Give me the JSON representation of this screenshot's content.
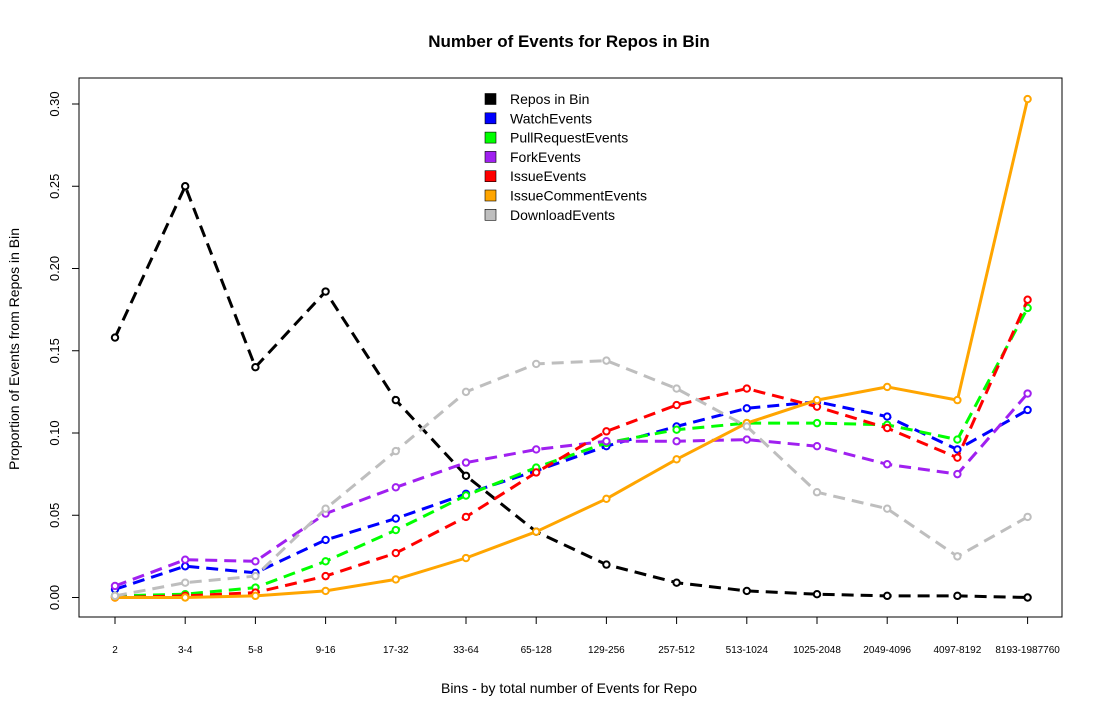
{
  "chart_data": {
    "type": "line",
    "title": "Number of Events for Repos in Bin",
    "xlabel": "Bins - by total number of Events for Repo",
    "ylabel": "Proportion of Events from Repos in Bin",
    "ylim": [
      0,
      0.3
    ],
    "y_ticks": [
      "0.00",
      "0.05",
      "0.10",
      "0.15",
      "0.20",
      "0.25",
      "0.30"
    ],
    "categories": [
      "2",
      "3-4",
      "5-8",
      "9-16",
      "17-32",
      "33-64",
      "65-128",
      "129-256",
      "257-512",
      "513-1024",
      "1025-2048",
      "2049-4096",
      "4097-8192",
      "8193-1987760"
    ],
    "legend_position": "top-center",
    "grid": false,
    "series": [
      {
        "name": "Repos in Bin",
        "color": "#000000",
        "dashed": true,
        "values": [
          0.158,
          0.25,
          0.14,
          0.186,
          0.12,
          0.074,
          0.04,
          0.02,
          0.009,
          0.004,
          0.002,
          0.001,
          0.001,
          0.0
        ]
      },
      {
        "name": "WatchEvents",
        "color": "#0000ff",
        "dashed": true,
        "values": [
          0.005,
          0.019,
          0.015,
          0.035,
          0.048,
          0.063,
          0.077,
          0.092,
          0.104,
          0.115,
          0.119,
          0.11,
          0.09,
          0.114
        ]
      },
      {
        "name": "PullRequestEvents",
        "color": "#00ff00",
        "dashed": true,
        "values": [
          0.001,
          0.002,
          0.006,
          0.022,
          0.041,
          0.062,
          0.079,
          0.094,
          0.102,
          0.106,
          0.106,
          0.105,
          0.096,
          0.176
        ]
      },
      {
        "name": "ForkEvents",
        "color": "#a020f0",
        "dashed": true,
        "values": [
          0.007,
          0.023,
          0.022,
          0.051,
          0.067,
          0.082,
          0.09,
          0.095,
          0.095,
          0.096,
          0.092,
          0.081,
          0.075,
          0.124
        ]
      },
      {
        "name": "IssueEvents",
        "color": "#ff0000",
        "dashed": true,
        "values": [
          0.0,
          0.001,
          0.003,
          0.013,
          0.027,
          0.049,
          0.076,
          0.101,
          0.117,
          0.127,
          0.116,
          0.103,
          0.085,
          0.181
        ]
      },
      {
        "name": "IssueCommentEvents",
        "color": "#ffa500",
        "dashed": false,
        "values": [
          0.0,
          0.0,
          0.001,
          0.004,
          0.011,
          0.024,
          0.04,
          0.06,
          0.084,
          0.106,
          0.12,
          0.128,
          0.12,
          0.303
        ]
      },
      {
        "name": "DownloadEvents",
        "color": "#bebebe",
        "dashed": true,
        "values": [
          0.001,
          0.009,
          0.013,
          0.054,
          0.089,
          0.125,
          0.142,
          0.144,
          0.127,
          0.104,
          0.064,
          0.054,
          0.025,
          0.049
        ]
      }
    ]
  }
}
